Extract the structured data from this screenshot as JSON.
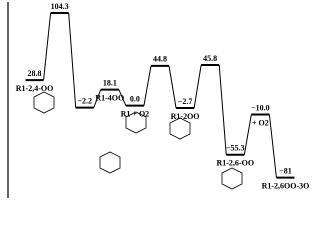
{
  "chart_data": {
    "type": "energy-profile",
    "categories": [
      "R1-2,4-OO",
      null,
      null,
      "R1-4OO",
      "R1 + O2",
      null,
      "R1-2OO",
      null,
      "R1-2,6-OO",
      "+ O2",
      "R1-2,6OO-3O"
    ],
    "values": [
      28.8,
      104.3,
      -2.2,
      18.1,
      0.0,
      44.8,
      -2.7,
      45.8,
      -55.3,
      -10.0,
      -81
    ],
    "value_labels": [
      "28.8",
      "104.3",
      "−2.2",
      "18.1",
      "0.0",
      "44.8",
      "−2.7",
      "45.8",
      "−55.3",
      "−10.0",
      "−81"
    ],
    "color": "#000000",
    "ylim": [
      -95,
      110
    ]
  }
}
